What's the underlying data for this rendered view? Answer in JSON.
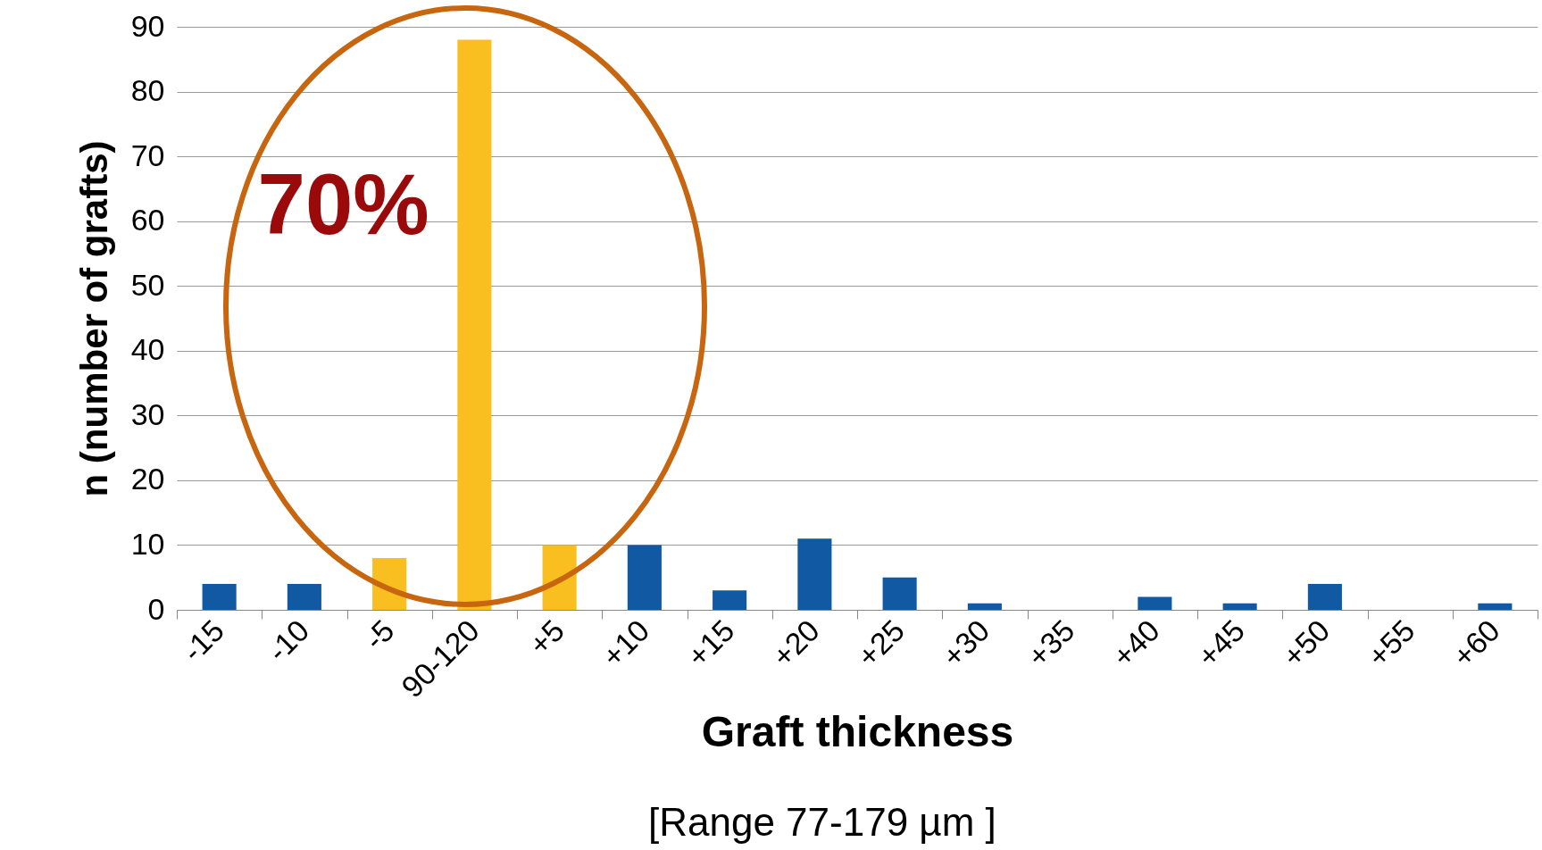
{
  "chart_data": {
    "type": "bar",
    "xlabel": "Graft thickness",
    "ylabel": "n (number of grafts)",
    "categories": [
      "-15",
      "-10",
      "-5",
      "90-120",
      "+5",
      "+10",
      "+15",
      "+20",
      "+25",
      "+30",
      "+35",
      "+40",
      "+45",
      "+50",
      "+55",
      "+60"
    ],
    "values": [
      4,
      4,
      8,
      88,
      10,
      10,
      3,
      11,
      5,
      1,
      0,
      2,
      1,
      4,
      0,
      1
    ],
    "colors": [
      "#1259a4",
      "#1259a4",
      "#f9be1f",
      "#f9be1f",
      "#f9be1f",
      "#1259a4",
      "#1259a4",
      "#1259a4",
      "#1259a4",
      "#1259a4",
      "#1259a4",
      "#1259a4",
      "#1259a4",
      "#1259a4",
      "#1259a4",
      "#1259a4"
    ],
    "ylim": [
      0,
      90
    ],
    "yticks": [
      0,
      10,
      20,
      30,
      40,
      50,
      60,
      70,
      80,
      90
    ],
    "grid": "y",
    "annotations": [
      "70%",
      "[Range 77-179 µm ]"
    ]
  }
}
